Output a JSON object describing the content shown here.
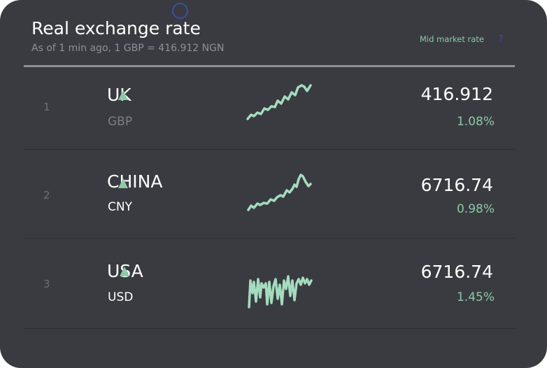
{
  "header": {
    "title": "Real exchange rate",
    "subtitle": "As of 1 min ago, 1 GBP = 416.912 NGN",
    "mid_market_label": "Mid market rate",
    "help_label": "?"
  },
  "colors": {
    "background": "#3a3b40",
    "accent_green": "#8ccaa8",
    "sparkline": "#a5dcbf",
    "help_blue": "#3c55a5",
    "muted_text": "#8e9097"
  },
  "rows": [
    {
      "rank": "1",
      "country": "UK",
      "code": "GBP",
      "rate": "416.912",
      "change": "1.08%",
      "trend_icon": "up-arrow-icon"
    },
    {
      "rank": "2",
      "country": "CHINA",
      "code": "CNY",
      "rate": "6716.74",
      "change": "0.98%",
      "trend_icon": "up-arrow-icon"
    },
    {
      "rank": "3",
      "country": "USA",
      "code": "USD",
      "rate": "6716.74",
      "change": "1.45%",
      "trend_icon": "up-arrow-icon"
    }
  ]
}
